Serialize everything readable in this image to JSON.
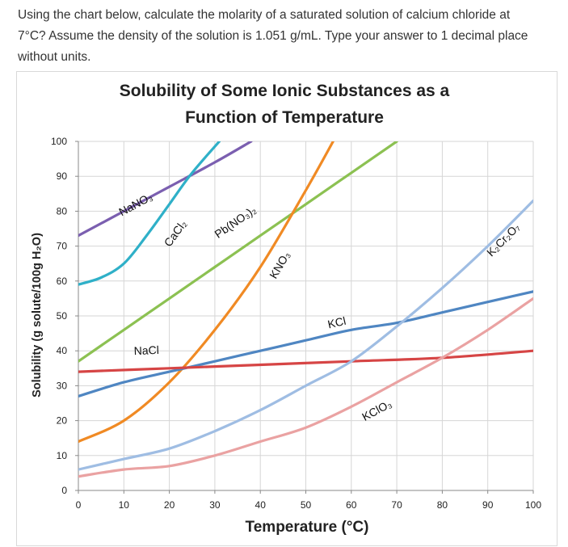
{
  "question": {
    "line1": "Using the chart below, calculate the molarity of a saturated solution of calcium chloride at",
    "line2": "7°C? Assume the density of the solution is 1.051 g/mL.  Type your answer to 1 decimal place",
    "line3": "without units."
  },
  "chart_data": {
    "type": "line",
    "title": "Solubility of Some Ionic Substances as a",
    "subtitle": "Function of Temperature",
    "xlabel": "Temperature (°C)",
    "ylabel": "Solubility (g solute/100g H₂O)",
    "xlim": [
      0,
      100
    ],
    "ylim": [
      0,
      100
    ],
    "x_ticks": [
      0,
      10,
      20,
      30,
      40,
      50,
      60,
      70,
      80,
      90,
      100
    ],
    "y_ticks": [
      0,
      10,
      20,
      30,
      40,
      50,
      60,
      70,
      80,
      90,
      100
    ],
    "grid": true,
    "legend": "none",
    "series": [
      {
        "name": "NaNO₃",
        "color": "#7b5fb0",
        "points": [
          [
            0,
            73
          ],
          [
            10,
            80
          ],
          [
            20,
            87
          ],
          [
            30,
            94
          ],
          [
            38,
            100
          ]
        ]
      },
      {
        "name": "CaCl₂",
        "color": "#2fb0c8",
        "points": [
          [
            0,
            59
          ],
          [
            5,
            61
          ],
          [
            10,
            65
          ],
          [
            15,
            73
          ],
          [
            20,
            82
          ],
          [
            25,
            91
          ],
          [
            31,
            100
          ]
        ]
      },
      {
        "name": "Pb(NO₃)₂",
        "color": "#8cc152",
        "points": [
          [
            0,
            37
          ],
          [
            10,
            46
          ],
          [
            20,
            55
          ],
          [
            30,
            64
          ],
          [
            40,
            73
          ],
          [
            50,
            82
          ],
          [
            60,
            91
          ],
          [
            70,
            100
          ]
        ]
      },
      {
        "name": "KNO₃",
        "color": "#f08a24",
        "points": [
          [
            0,
            14
          ],
          [
            10,
            20
          ],
          [
            20,
            31
          ],
          [
            30,
            46
          ],
          [
            40,
            64
          ],
          [
            50,
            86
          ],
          [
            56,
            100
          ]
        ]
      },
      {
        "name": "KCl",
        "color": "#4f86c2",
        "points": [
          [
            0,
            27
          ],
          [
            10,
            31
          ],
          [
            20,
            34
          ],
          [
            30,
            37
          ],
          [
            40,
            40
          ],
          [
            50,
            43
          ],
          [
            60,
            46
          ],
          [
            70,
            48
          ],
          [
            80,
            51
          ],
          [
            90,
            54
          ],
          [
            100,
            57
          ]
        ]
      },
      {
        "name": "NaCl",
        "color": "#d64545",
        "points": [
          [
            0,
            34
          ],
          [
            20,
            35
          ],
          [
            40,
            36
          ],
          [
            60,
            37
          ],
          [
            80,
            38
          ],
          [
            100,
            40
          ]
        ]
      },
      {
        "name": "K₂Cr₂O₇",
        "color": "#9fbde3",
        "points": [
          [
            0,
            6
          ],
          [
            10,
            9
          ],
          [
            20,
            12
          ],
          [
            30,
            17
          ],
          [
            40,
            23
          ],
          [
            50,
            30
          ],
          [
            60,
            37
          ],
          [
            70,
            47
          ],
          [
            80,
            58
          ],
          [
            90,
            70
          ],
          [
            100,
            83
          ]
        ]
      },
      {
        "name": "KClO₃",
        "color": "#eaa2a2",
        "points": [
          [
            0,
            4
          ],
          [
            10,
            6
          ],
          [
            20,
            7
          ],
          [
            30,
            10
          ],
          [
            40,
            14
          ],
          [
            50,
            18
          ],
          [
            60,
            24
          ],
          [
            70,
            31
          ],
          [
            80,
            38
          ],
          [
            90,
            46
          ],
          [
            100,
            55
          ]
        ]
      }
    ],
    "annotations": [
      {
        "label": "NaNO₃",
        "x": 13,
        "y": 81
      },
      {
        "label": "CaCl₂",
        "x": 22,
        "y": 73
      },
      {
        "label": "Pb(NO₃)₂",
        "x": 35,
        "y": 76
      },
      {
        "label": "KNO₃",
        "x": 45,
        "y": 64
      },
      {
        "label": "KCl",
        "x": 57,
        "y": 47
      },
      {
        "label": "NaCl",
        "x": 15,
        "y": 39
      },
      {
        "label": "KClO₃",
        "x": 66,
        "y": 22
      },
      {
        "label": "K₂Cr₂O₇",
        "x": 94,
        "y": 71
      }
    ]
  }
}
